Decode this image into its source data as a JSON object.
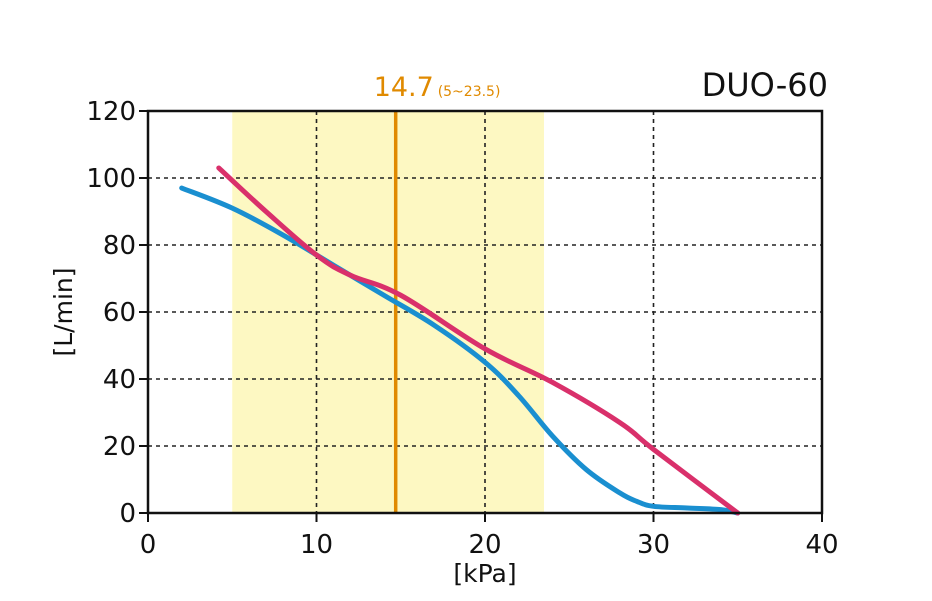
{
  "chart_data": {
    "type": "line",
    "title": "DUO-60",
    "xlabel": "[kPa]",
    "ylabel": "[L/min]",
    "xlim": [
      0,
      40
    ],
    "ylim": [
      0,
      120
    ],
    "xticks": [
      "0",
      "10",
      "20",
      "30",
      "40"
    ],
    "yticks": [
      "0",
      "20",
      "40",
      "60",
      "80",
      "100",
      "120"
    ],
    "xtick_values": [
      0,
      10,
      20,
      30,
      40
    ],
    "ytick_values": [
      0,
      20,
      40,
      60,
      80,
      100,
      120
    ],
    "grid": true,
    "shaded_band": {
      "x_range": [
        5,
        23.5
      ],
      "color": "#fdf8c2"
    },
    "reference_line": {
      "x": 14.7,
      "label": "14.7",
      "sublabel": "(5~23.5)",
      "color": "#e08a00"
    },
    "series": [
      {
        "name": "blue",
        "color": "#1a8fd0",
        "x": [
          2,
          5,
          8,
          11,
          14,
          17,
          20,
          22,
          24,
          26,
          28,
          29,
          30,
          32,
          34,
          35
        ],
        "y": [
          97,
          91,
          83,
          74,
          65,
          56,
          45,
          35,
          23,
          13,
          6,
          3.5,
          2,
          1.5,
          1,
          0
        ]
      },
      {
        "name": "magenta",
        "color": "#d9306b",
        "x": [
          4.2,
          7,
          10,
          12,
          15,
          20,
          24,
          28,
          30,
          35
        ],
        "y": [
          103,
          90,
          77,
          71,
          65,
          49,
          39,
          27,
          19,
          0
        ]
      }
    ]
  }
}
